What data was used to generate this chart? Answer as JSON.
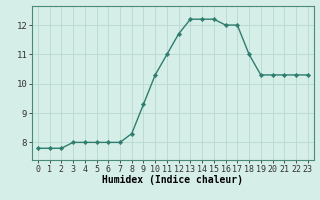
{
  "x": [
    0,
    1,
    2,
    3,
    4,
    5,
    6,
    7,
    8,
    9,
    10,
    11,
    12,
    13,
    14,
    15,
    16,
    17,
    18,
    19,
    20,
    21,
    22,
    23
  ],
  "y": [
    7.8,
    7.8,
    7.8,
    8.0,
    8.0,
    8.0,
    8.0,
    8.0,
    8.3,
    9.3,
    10.3,
    11.0,
    11.7,
    12.2,
    12.2,
    12.2,
    12.0,
    12.0,
    11.0,
    10.3,
    10.3,
    10.3,
    10.3,
    10.3
  ],
  "line_color": "#2e7d6e",
  "marker": "D",
  "marker_size": 2.2,
  "background_color": "#d6eee8",
  "grid_color": "#b8d8d0",
  "grid_color_major": "#c0d8d0",
  "xlabel": "Humidex (Indice chaleur)",
  "xlabel_fontsize": 7,
  "ylabel_ticks": [
    8,
    9,
    10,
    11,
    12
  ],
  "xlim": [
    -0.5,
    23.5
  ],
  "ylim": [
    7.4,
    12.65
  ],
  "ytick_labels": [
    "8",
    "9",
    "10",
    "11",
    "12"
  ],
  "xtick_labels": [
    "0",
    "1",
    "2",
    "3",
    "4",
    "5",
    "6",
    "7",
    "8",
    "9",
    "10",
    "11",
    "12",
    "13",
    "14",
    "15",
    "16",
    "17",
    "18",
    "19",
    "20",
    "21",
    "22",
    "23"
  ],
  "tick_fontsize": 6.0,
  "spine_color": "#4a8a7a"
}
